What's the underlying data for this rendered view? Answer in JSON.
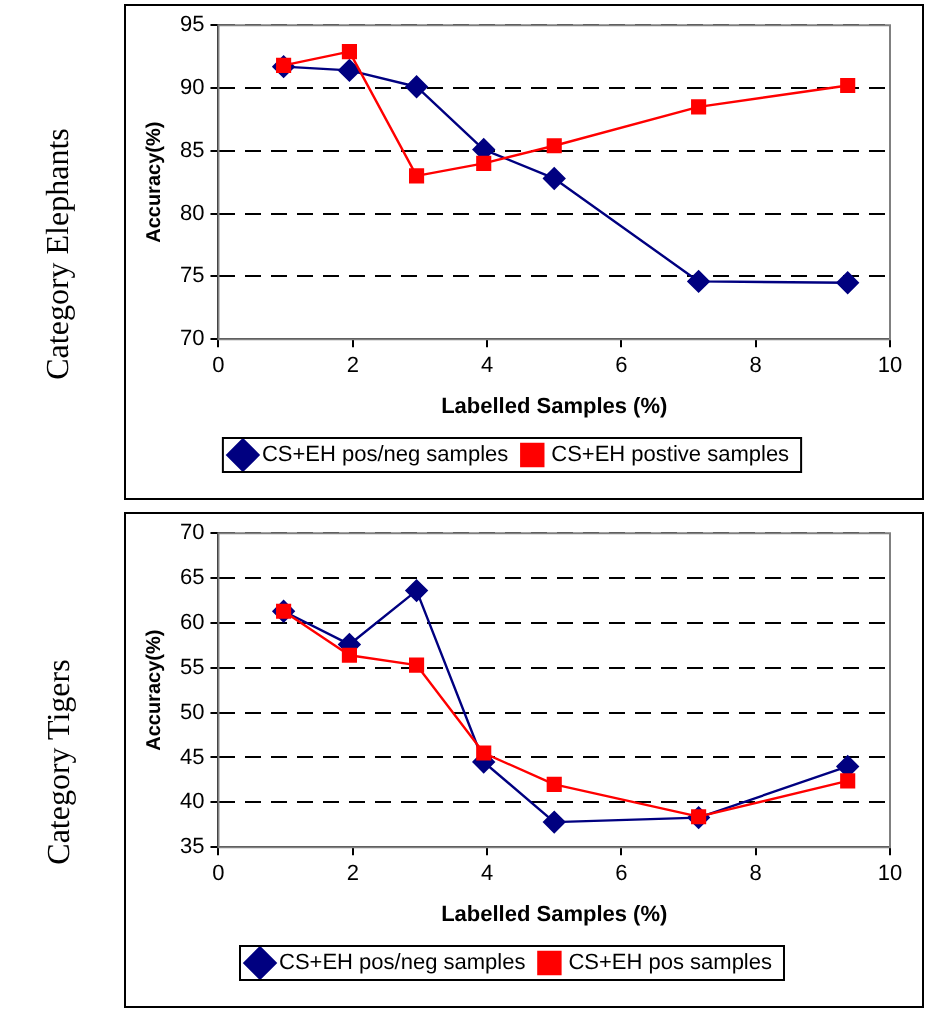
{
  "chart_data": [
    {
      "type": "line",
      "title": "Category Elephants",
      "xlabel": "Labelled Samples (%)",
      "ylabel": "Accuracy(%)",
      "x": [
        0.97,
        1.95,
        2.95,
        3.95,
        5.0,
        7.15,
        9.37
      ],
      "series": [
        {
          "name": "CS+EH pos/neg samples",
          "color": "#000080",
          "marker": "diamond",
          "values": [
            91.7,
            91.4,
            90.1,
            85.1,
            82.8,
            74.6,
            74.5
          ]
        },
        {
          "name": "CS+EH postive samples",
          "color": "#ff0000",
          "marker": "square",
          "values": [
            91.8,
            92.9,
            83.0,
            84.0,
            85.4,
            88.5,
            90.2
          ]
        }
      ],
      "xlim": [
        0,
        10
      ],
      "xticks": [
        0,
        2,
        4,
        6,
        8,
        10
      ],
      "ylim": [
        70,
        95
      ],
      "yticks": [
        70,
        75,
        80,
        85,
        90,
        95
      ],
      "grid": "y",
      "legend": "bottom"
    },
    {
      "type": "line",
      "title": "Category Tigers",
      "xlabel": "Labelled Samples (%)",
      "ylabel": "Accuracy(%)",
      "x": [
        0.97,
        1.95,
        2.95,
        3.95,
        5.0,
        7.15,
        9.37
      ],
      "series": [
        {
          "name": "CS+EH pos/neg samples",
          "color": "#000080",
          "marker": "diamond",
          "values": [
            61.3,
            57.6,
            63.6,
            44.5,
            37.8,
            38.3,
            44.0
          ]
        },
        {
          "name": "CS+EH pos samples",
          "color": "#ff0000",
          "marker": "square",
          "values": [
            61.3,
            56.4,
            55.3,
            45.5,
            42.0,
            38.4,
            42.4
          ]
        }
      ],
      "xlim": [
        0,
        10
      ],
      "xticks": [
        0,
        2,
        4,
        6,
        8,
        10
      ],
      "ylim": [
        35,
        70
      ],
      "yticks": [
        35,
        40,
        45,
        50,
        55,
        60,
        65,
        70
      ],
      "grid": "y",
      "legend": "bottom"
    }
  ]
}
